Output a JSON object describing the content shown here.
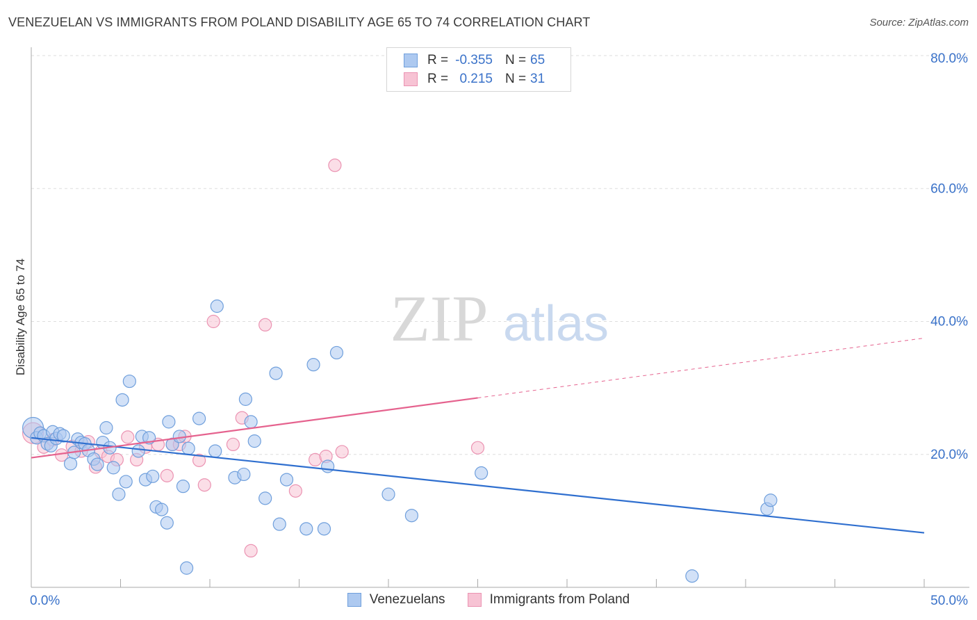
{
  "title": "VENEZUELAN VS IMMIGRANTS FROM POLAND DISABILITY AGE 65 TO 74 CORRELATION CHART",
  "source": "Source: ZipAtlas.com",
  "watermark": {
    "zip": "ZIP",
    "atlas": "atlas"
  },
  "legend": {
    "r_label": "R =",
    "n_label": "N =",
    "series1": {
      "r": "-0.355",
      "n": "65"
    },
    "series2": {
      "r": "0.215",
      "n": "31"
    }
  },
  "colors": {
    "blue_fill": "#adc9f0",
    "blue_stroke": "#6f9fdc",
    "blue_line": "#2f6fcf",
    "pink_fill": "#f7c3d4",
    "pink_stroke": "#eb93b2",
    "pink_line": "#e5628e",
    "tick_label": "#3a72c9",
    "grid": "#dddddd"
  },
  "chart_data": {
    "type": "scatter",
    "title": "VENEZUELAN VS IMMIGRANTS FROM POLAND DISABILITY AGE 65 TO 74 CORRELATION CHART",
    "xlabel": "",
    "ylabel": "Disability Age 65 to 74",
    "xlim": [
      0,
      50
    ],
    "ylim": [
      0,
      80
    ],
    "x_tick_labels": [
      {
        "value": 0,
        "label": "0.0%"
      },
      {
        "value": 50,
        "label": "50.0%"
      }
    ],
    "y_tick_labels": [
      {
        "value": 20,
        "label": "20.0%"
      },
      {
        "value": 40,
        "label": "40.0%"
      },
      {
        "value": 60,
        "label": "60.0%"
      },
      {
        "value": 80,
        "label": "80.0%"
      }
    ],
    "series": [
      {
        "name": "Venezuelans",
        "r": -0.355,
        "n": 65,
        "trendline": {
          "x1": 0,
          "y1": 22.5,
          "x2": 50,
          "y2": 8.2,
          "dashed_from": null
        },
        "points": [
          [
            0.1,
            24.0
          ],
          [
            0.3,
            22.5
          ],
          [
            0.5,
            23.2
          ],
          [
            0.7,
            22.8
          ],
          [
            0.9,
            21.6
          ],
          [
            1.1,
            21.3
          ],
          [
            1.2,
            23.4
          ],
          [
            1.4,
            22.4
          ],
          [
            1.6,
            23.1
          ],
          [
            1.8,
            22.8
          ],
          [
            2.2,
            18.6
          ],
          [
            2.4,
            20.3
          ],
          [
            2.6,
            22.3
          ],
          [
            2.8,
            21.8
          ],
          [
            3.0,
            21.6
          ],
          [
            3.2,
            20.6
          ],
          [
            3.5,
            19.3
          ],
          [
            3.7,
            18.5
          ],
          [
            4.0,
            21.8
          ],
          [
            4.2,
            24.0
          ],
          [
            4.4,
            21.0
          ],
          [
            4.6,
            18.0
          ],
          [
            4.9,
            14.0
          ],
          [
            5.1,
            28.2
          ],
          [
            5.3,
            15.9
          ],
          [
            5.5,
            31.0
          ],
          [
            6.0,
            20.5
          ],
          [
            6.2,
            22.7
          ],
          [
            6.4,
            16.2
          ],
          [
            6.6,
            22.5
          ],
          [
            6.8,
            16.7
          ],
          [
            7.0,
            12.1
          ],
          [
            7.3,
            11.7
          ],
          [
            7.6,
            9.7
          ],
          [
            7.7,
            24.9
          ],
          [
            7.9,
            21.5
          ],
          [
            8.3,
            22.7
          ],
          [
            8.5,
            15.2
          ],
          [
            8.7,
            2.9
          ],
          [
            8.8,
            20.9
          ],
          [
            9.4,
            25.4
          ],
          [
            10.3,
            20.5
          ],
          [
            10.4,
            42.3
          ],
          [
            11.4,
            16.5
          ],
          [
            11.9,
            17.0
          ],
          [
            12.0,
            28.3
          ],
          [
            12.3,
            24.9
          ],
          [
            12.5,
            22.0
          ],
          [
            13.1,
            13.4
          ],
          [
            13.7,
            32.2
          ],
          [
            13.9,
            9.5
          ],
          [
            14.3,
            16.2
          ],
          [
            15.4,
            8.8
          ],
          [
            15.8,
            33.5
          ],
          [
            16.4,
            8.8
          ],
          [
            16.6,
            18.2
          ],
          [
            17.1,
            35.3
          ],
          [
            20.0,
            14.0
          ],
          [
            21.3,
            10.8
          ],
          [
            25.2,
            17.2
          ],
          [
            37.0,
            1.7
          ],
          [
            41.2,
            11.8
          ],
          [
            41.4,
            13.1
          ]
        ]
      },
      {
        "name": "Immigrants from Poland",
        "r": 0.215,
        "n": 31,
        "trendline": {
          "x1": 0,
          "y1": 19.5,
          "x2": 50,
          "y2": 37.5,
          "dashed_from": 25
        },
        "points": [
          [
            0.1,
            23.2
          ],
          [
            0.7,
            21.1
          ],
          [
            1.2,
            22.2
          ],
          [
            1.7,
            19.9
          ],
          [
            2.3,
            21.2
          ],
          [
            2.8,
            20.5
          ],
          [
            3.2,
            21.9
          ],
          [
            3.6,
            18.1
          ],
          [
            3.9,
            20.4
          ],
          [
            4.3,
            19.7
          ],
          [
            4.8,
            19.2
          ],
          [
            5.4,
            22.6
          ],
          [
            5.9,
            19.2
          ],
          [
            6.4,
            21.1
          ],
          [
            7.1,
            21.5
          ],
          [
            7.6,
            16.8
          ],
          [
            7.9,
            21.5
          ],
          [
            8.3,
            21.5
          ],
          [
            8.6,
            22.7
          ],
          [
            9.4,
            19.1
          ],
          [
            9.7,
            15.4
          ],
          [
            10.2,
            40.0
          ],
          [
            11.3,
            21.5
          ],
          [
            11.8,
            25.5
          ],
          [
            12.3,
            5.5
          ],
          [
            13.1,
            39.5
          ],
          [
            14.8,
            14.5
          ],
          [
            15.9,
            19.2
          ],
          [
            16.5,
            19.7
          ],
          [
            17.0,
            63.5
          ],
          [
            17.4,
            20.4
          ],
          [
            25.0,
            21.0
          ]
        ]
      }
    ]
  }
}
